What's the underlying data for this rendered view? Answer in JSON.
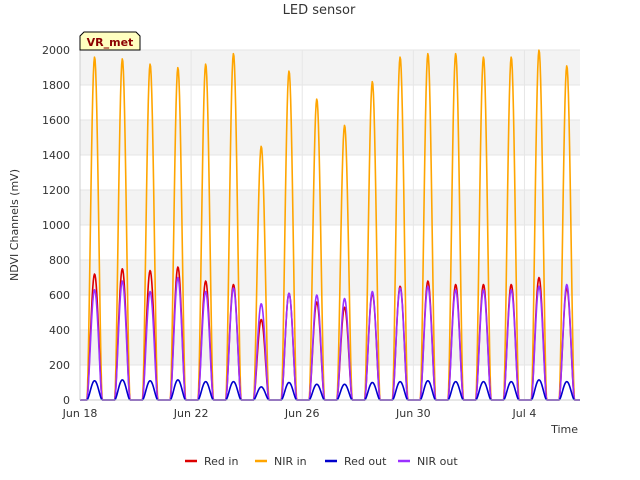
{
  "chart_data": {
    "type": "line",
    "title": "LED sensor",
    "xlabel": "Time",
    "ylabel": "NDVI Channels (mV)",
    "ylim": [
      0,
      2000
    ],
    "yticks": [
      0,
      200,
      400,
      600,
      800,
      1000,
      1200,
      1400,
      1600,
      1800,
      2000
    ],
    "xlim": [
      "2024-06-18",
      "2024-07-06"
    ],
    "xticks": [
      {
        "date": "2024-06-18",
        "label": "Jun 18"
      },
      {
        "date": "2024-06-22",
        "label": "Jun 22"
      },
      {
        "date": "2024-06-26",
        "label": "Jun 26"
      },
      {
        "date": "2024-06-30",
        "label": "Jun 30"
      },
      {
        "date": "2024-07-04",
        "label": "Jul 4"
      }
    ],
    "grid": "horizontal bands",
    "legend_position": "bottom",
    "badge": "VR_met",
    "series": [
      {
        "name": "Red in",
        "color": "#dd0000",
        "peaks": [
          720,
          750,
          740,
          760,
          680,
          660,
          460,
          610,
          560,
          530,
          610,
          650,
          680,
          660,
          660,
          660,
          700,
          640
        ]
      },
      {
        "name": "NIR in",
        "color": "#ffa500",
        "peaks": [
          1960,
          1950,
          1920,
          1900,
          1920,
          1980,
          1450,
          1880,
          1720,
          1570,
          1820,
          1960,
          1980,
          1980,
          1960,
          1960,
          2000,
          1910
        ]
      },
      {
        "name": "Red out",
        "color": "#0000cc",
        "peaks": [
          110,
          115,
          110,
          115,
          105,
          105,
          75,
          100,
          90,
          90,
          100,
          105,
          110,
          105,
          105,
          105,
          115,
          105
        ]
      },
      {
        "name": "NIR out",
        "color": "#9b30ff",
        "peaks": [
          630,
          680,
          620,
          700,
          620,
          640,
          550,
          610,
          600,
          580,
          620,
          640,
          650,
          630,
          630,
          630,
          650,
          660
        ]
      }
    ]
  }
}
